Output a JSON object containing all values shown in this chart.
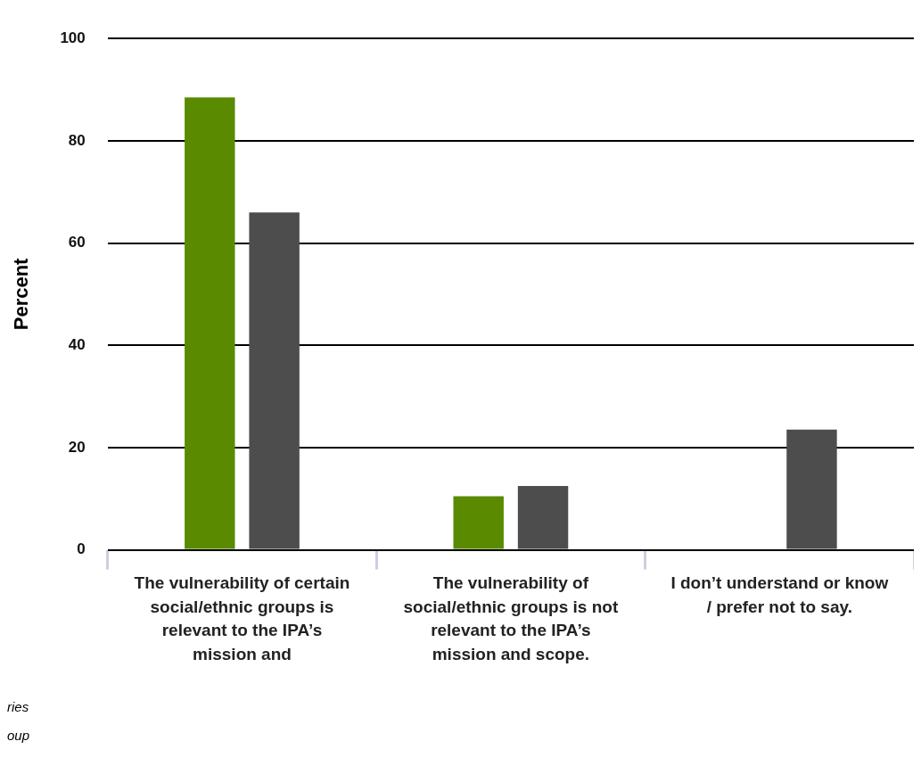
{
  "chart_data": {
    "type": "bar",
    "ylabel": "Percent",
    "categories": [
      "The vulnerability of certain social/ethnic groups is relevant to the IPA’s mission and",
      "The vulnerability of social/ethnic groups is not relevant to the IPA’s mission and scope.",
      "I don’t understand or know / prefer not to say."
    ],
    "series": [
      {
        "color": "#5a8a00",
        "values": [
          88.5,
          10.5,
          null
        ]
      },
      {
        "color": "#4d4d4d",
        "values": [
          66,
          12.5,
          23.5
        ]
      }
    ],
    "ylim": [
      0,
      100
    ],
    "yticks": [
      0,
      20,
      40,
      60,
      80,
      100
    ],
    "grid": "y",
    "legend": false,
    "annotations": [
      "ries",
      "oup"
    ]
  }
}
